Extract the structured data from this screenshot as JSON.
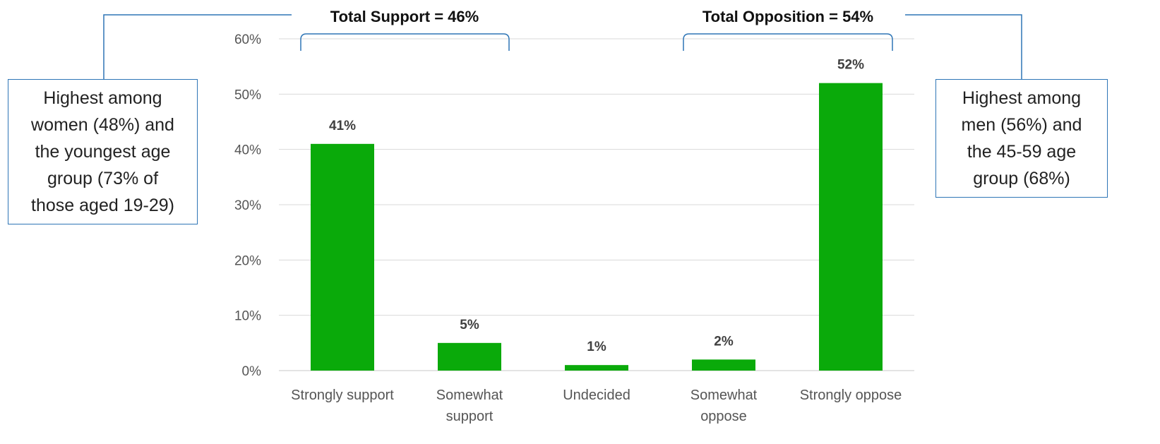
{
  "chart_data": {
    "type": "bar",
    "categories": [
      "Strongly support",
      "Somewhat support",
      "Undecided",
      "Somewhat oppose",
      "Strongly oppose"
    ],
    "category_lines": [
      [
        "Strongly support"
      ],
      [
        "Somewhat",
        "support"
      ],
      [
        "Undecided"
      ],
      [
        "Somewhat",
        "oppose"
      ],
      [
        "Strongly oppose"
      ]
    ],
    "values": [
      41,
      5,
      1,
      2,
      52
    ],
    "data_labels": [
      "41%",
      "5%",
      "1%",
      "2%",
      "52%"
    ],
    "y_ticks": [
      "0%",
      "10%",
      "20%",
      "30%",
      "40%",
      "50%",
      "60%"
    ],
    "ylim": [
      0,
      60
    ],
    "grid": true,
    "bar_color": "#0aaa0a",
    "annotations": {
      "support_total": "Total Support = 46%",
      "opposition_total": "Total Opposition = 54%",
      "support_note": [
        "Highest among",
        "women (48%) and",
        "the youngest age",
        "group (73% of",
        "those aged 19-29)"
      ],
      "opposition_note": [
        "Highest among",
        "men (56%) and",
        "the 45-59 age",
        "group (68%)"
      ]
    }
  }
}
